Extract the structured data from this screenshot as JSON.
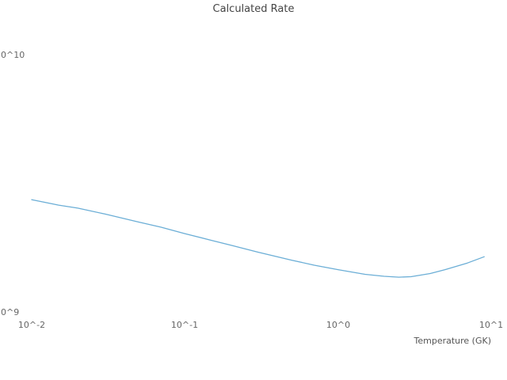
{
  "chart_data": {
    "type": "line",
    "title": "Calculated Rate",
    "xlabel": "Temperature (GK)",
    "ylabel": "",
    "x_scale": "log",
    "y_scale": "log",
    "xlim": [
      0.01,
      10
    ],
    "ylim": [
      1000000000,
      10000000000
    ],
    "grid": false,
    "legend_position": "none",
    "line_color": "#6baed6",
    "x_ticks": [
      {
        "label": "10^-2",
        "value": 0.01
      },
      {
        "label": "10^-1",
        "value": 0.1
      },
      {
        "label": "10^0",
        "value": 1
      },
      {
        "label": "10^1",
        "value": 10
      }
    ],
    "y_ticks": [
      {
        "label": "10^10",
        "value": 10000000000
      },
      {
        "label": "10^9",
        "value": 1000000000
      }
    ],
    "series": [
      {
        "name": "Calculated Rate",
        "x": [
          0.01,
          0.015,
          0.02,
          0.03,
          0.05,
          0.07,
          0.1,
          0.15,
          0.2,
          0.3,
          0.5,
          0.7,
          1.0,
          1.5,
          2.0,
          2.5,
          3.0,
          4.0,
          5.0,
          7.0,
          9.0
        ],
        "y": [
          2750000000.0,
          2620000000.0,
          2550000000.0,
          2420000000.0,
          2250000000.0,
          2150000000.0,
          2030000000.0,
          1910000000.0,
          1830000000.0,
          1720000000.0,
          1600000000.0,
          1530000000.0,
          1470000000.0,
          1410000000.0,
          1385000000.0,
          1375000000.0,
          1380000000.0,
          1420000000.0,
          1470000000.0,
          1560000000.0,
          1650000000.0
        ]
      }
    ]
  }
}
